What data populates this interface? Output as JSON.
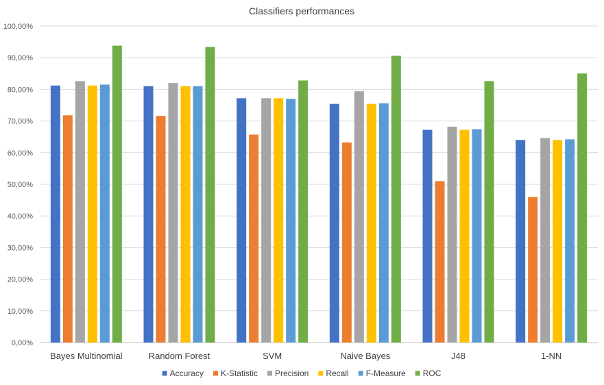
{
  "chart_data": {
    "type": "bar",
    "title": "Classifiers performances",
    "xlabel": "",
    "ylabel": "",
    "categories": [
      "Bayes Multinomial",
      "Random Forest",
      "SVM",
      "Naive Bayes",
      "J48",
      "1-NN"
    ],
    "series": [
      {
        "name": "Accuracy",
        "color": "#4472C4",
        "values": [
          81.2,
          81.0,
          77.2,
          75.4,
          67.2,
          64.0
        ]
      },
      {
        "name": "K-Statistic",
        "color": "#ED7D31",
        "values": [
          71.8,
          71.6,
          65.7,
          63.2,
          51.0,
          46.0
        ]
      },
      {
        "name": "Precision",
        "color": "#A5A5A5",
        "values": [
          82.6,
          82.0,
          77.2,
          79.4,
          68.2,
          64.6
        ]
      },
      {
        "name": "Recall",
        "color": "#FFC000",
        "values": [
          81.2,
          81.0,
          77.2,
          75.4,
          67.2,
          64.0
        ]
      },
      {
        "name": "F-Measure",
        "color": "#5B9BD5",
        "values": [
          81.5,
          81.0,
          77.0,
          75.6,
          67.4,
          64.2
        ]
      },
      {
        "name": "ROC",
        "color": "#70AD47",
        "values": [
          93.8,
          93.4,
          82.8,
          90.6,
          82.6,
          85.0
        ]
      }
    ],
    "ylim": [
      0,
      100
    ],
    "ytick_labels": [
      "0,00%",
      "10,00%",
      "20,00%",
      "30,00%",
      "40,00%",
      "50,00%",
      "60,00%",
      "70,00%",
      "80,00%",
      "90,00%",
      "100,00%"
    ],
    "grid": true,
    "legend_position": "bottom"
  }
}
